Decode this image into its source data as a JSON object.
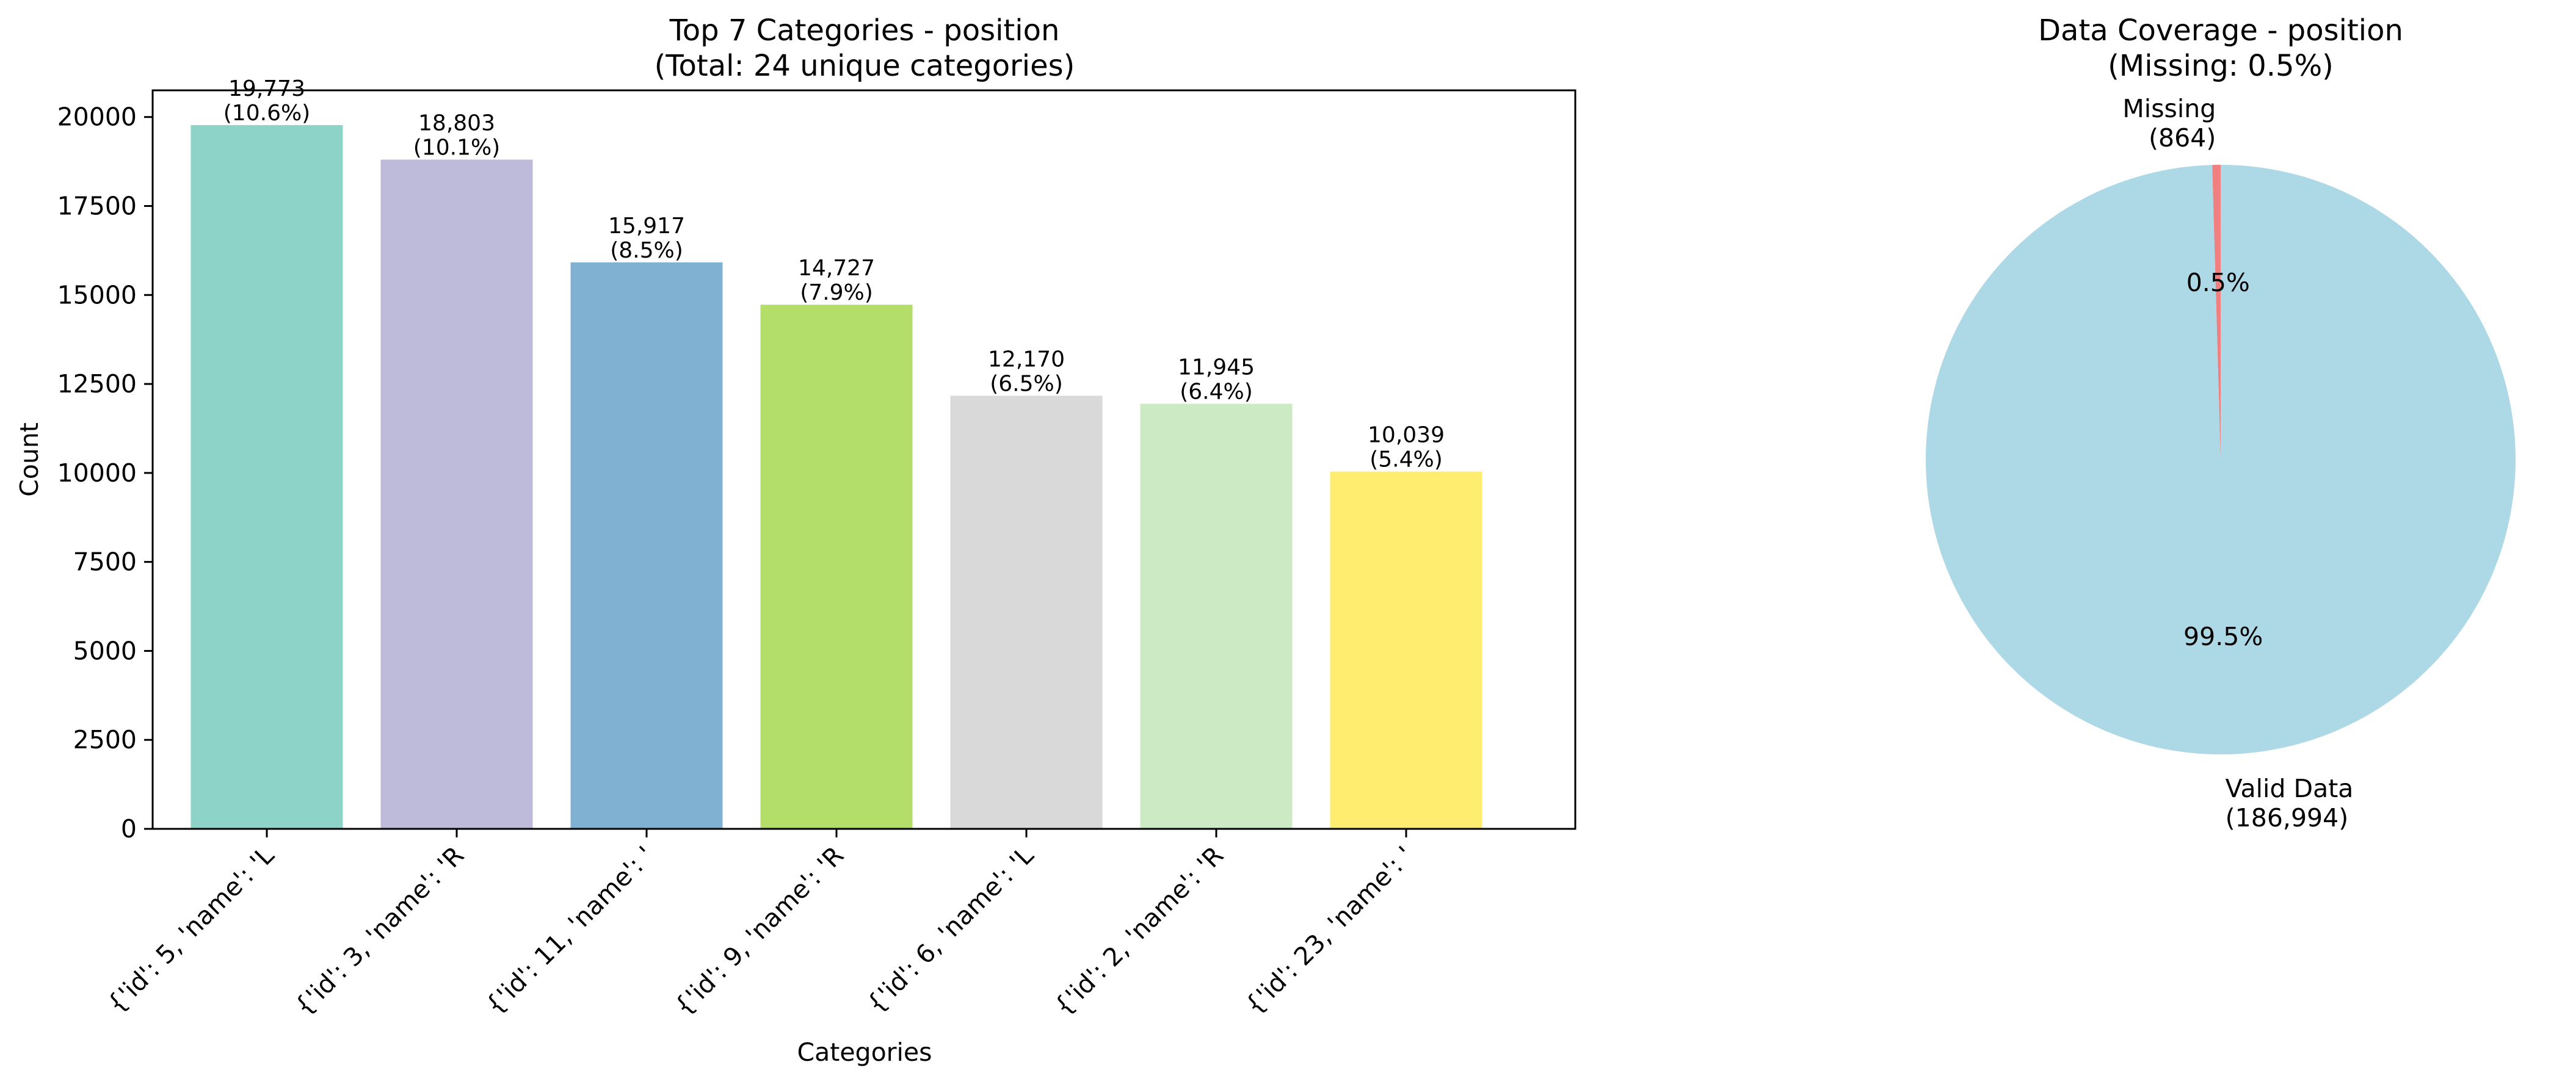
{
  "chart_data": [
    {
      "type": "bar",
      "title": "Top 7 Categories - position",
      "subtitle": "(Total: 24 unique categories)",
      "xlabel": "Categories",
      "ylabel": "Count",
      "ylim": [
        0,
        20750
      ],
      "yticks": [
        0,
        2500,
        5000,
        7500,
        10000,
        12500,
        15000,
        17500,
        20000
      ],
      "grid": false,
      "categories": [
        "{'id': 5, 'name': 'L",
        "{'id': 3, 'name': 'R",
        "{'id': 11, 'name': '",
        "{'id': 9, 'name': 'R",
        "{'id': 6, 'name': 'L",
        "{'id': 2, 'name': 'R",
        "{'id': 23, 'name': '"
      ],
      "values": [
        19773,
        18803,
        15917,
        14727,
        12170,
        11945,
        10039
      ],
      "value_labels": [
        "19,773",
        "18,803",
        "15,917",
        "14,727",
        "12,170",
        "11,945",
        "10,039"
      ],
      "percent_labels": [
        "(10.6%)",
        "(10.1%)",
        "(8.5%)",
        "(7.9%)",
        "(6.5%)",
        "(6.4%)",
        "(5.4%)"
      ],
      "colors": [
        "#8dd3c7",
        "#bebada",
        "#80b1d3",
        "#b3de69",
        "#d9d9d9",
        "#ccebc5",
        "#ffed6f"
      ]
    },
    {
      "type": "pie",
      "title": "Data Coverage - position",
      "subtitle": "(Missing: 0.5%)",
      "slices": [
        {
          "label": "Missing",
          "count_label": "(864)",
          "value": 864,
          "percent_label": "0.5%",
          "color": "#f08080"
        },
        {
          "label": "Valid Data",
          "count_label": "(186,994)",
          "value": 186994,
          "percent_label": "99.5%",
          "color": "#add8e6"
        }
      ]
    }
  ]
}
